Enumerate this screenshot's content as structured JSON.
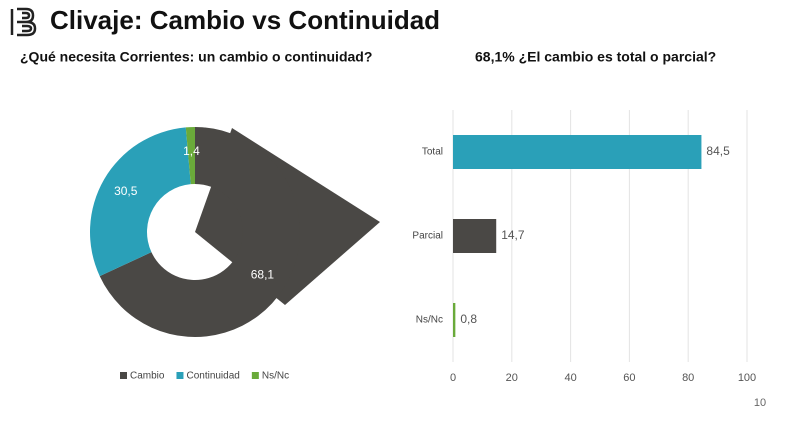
{
  "header": {
    "title": "Clivaje: Cambio vs Continuidad"
  },
  "chart_data": [
    {
      "type": "donut",
      "title": "¿Qué necesita Corrientes: un cambio o continuidad?",
      "categories": [
        "Cambio",
        "Continuidad",
        "Ns/Nc"
      ],
      "values": [
        68.1,
        30.5,
        1.4
      ],
      "value_labels": [
        "68,1",
        "30,5",
        "1,4"
      ],
      "colors": [
        "#4a4845",
        "#2aa0b8",
        "#6aaa3a"
      ],
      "legend": "bottom"
    },
    {
      "type": "bar",
      "orientation": "horizontal",
      "title": "68,1% ¿El cambio es total o parcial?",
      "categories": [
        "Total",
        "Parcial",
        "Ns/Nc"
      ],
      "values": [
        84.5,
        14.7,
        0.8
      ],
      "value_labels": [
        "84,5",
        "14,7",
        "0,8"
      ],
      "colors": [
        "#2aa0b8",
        "#4a4845",
        "#6aaa3a"
      ],
      "xlim": [
        0,
        100
      ],
      "xticks": [
        0,
        20,
        40,
        60,
        80,
        100
      ],
      "grid": true
    }
  ],
  "page_number": "10"
}
